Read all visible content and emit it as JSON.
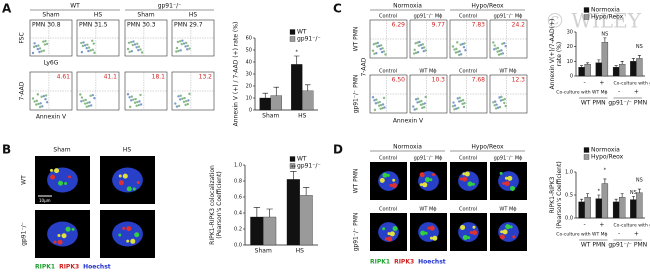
{
  "panel_labels": [
    "A",
    "B",
    "C",
    "D"
  ],
  "watermark": "© WILEY",
  "panel_a": {
    "groups": [
      "WT",
      "gp91⁻/⁻"
    ],
    "top": [
      {
        "condition": "Sham",
        "gate": "PMN 30.8"
      },
      {
        "condition": "HS",
        "gate": "PMN 31.5"
      },
      {
        "condition": "Sham",
        "gate": "PMN 30.3"
      },
      {
        "condition": "HS",
        "gate": "PMN 29.7"
      }
    ],
    "top_axes": [
      "FSC",
      "Ly6G"
    ],
    "bottom": [
      "4.61",
      "41.1",
      "18.1",
      "13.2"
    ],
    "bottom_axes": [
      "7-AAD",
      "Annexin V"
    ]
  },
  "panel_b": {
    "columns": [
      "Sham",
      "HS"
    ],
    "rows": [
      "WT",
      "gp91⁻/⁻"
    ],
    "scale_bar": "10μm",
    "stain": [
      "RIPK1",
      "RIPK3",
      "Hoechst"
    ]
  },
  "panel_c": {
    "columns": [
      "Normoxia",
      "Hypo/Reox"
    ],
    "conditions": [
      [
        "Control",
        "gp91⁻/⁻ Mϕ",
        "Control",
        "gp91⁻/⁻ Mϕ"
      ],
      [
        "Control",
        "WT Mϕ",
        "Control",
        "WT Mϕ"
      ]
    ],
    "rows": [
      "WT PMN",
      "gp91⁻/⁻ PMN"
    ],
    "gates": [
      [
        "6.29",
        "9.77",
        "7.83",
        "24.2"
      ],
      [
        "6.50",
        "10.3",
        "7.68",
        "12.3"
      ]
    ],
    "axes": [
      "7-AAD",
      "Annexin V"
    ]
  },
  "panel_d": {
    "columns": [
      "Normoxia",
      "Hypo/Reox"
    ],
    "conditions": [
      [
        "Control",
        "gp91⁻/⁻ Mϕ",
        "Control",
        "gp91⁻/⁻ Mϕ"
      ],
      [
        "Control",
        "WT Mϕ",
        "Control",
        "WT Mϕ"
      ]
    ],
    "rows": [
      "WT PMN",
      "gp91⁻/⁻ PMN"
    ],
    "stain": [
      "RIPK1",
      "RIPK3",
      "Hoechst"
    ]
  },
  "chart_data": [
    {
      "type": "bar",
      "ylabel": [
        "Annexin V (+) / 7-AAD (+) rate (%)"
      ],
      "categories": [
        "Sham",
        "HS"
      ],
      "series": [
        {
          "name": "WT",
          "color": "#111111",
          "values": [
            10,
            38
          ],
          "errors": [
            4,
            7
          ]
        },
        {
          "name": "gp91⁻/⁻",
          "color": "#9a9a9a",
          "values": [
            12,
            16
          ],
          "errors": [
            7,
            5
          ]
        }
      ],
      "ylim": [
        0,
        60
      ],
      "yticks": [
        0,
        10,
        20,
        30,
        40,
        50,
        60
      ],
      "legend": "upper right",
      "annotations": [
        "*"
      ]
    },
    {
      "type": "bar",
      "ylabel": [
        "RIPK1-RIPK3 colocalization",
        "(Pearson's Coefficient)"
      ],
      "categories": [
        "Sham",
        "HS"
      ],
      "series": [
        {
          "name": "WT",
          "color": "#111111",
          "values": [
            0.35,
            0.82
          ],
          "errors": [
            0.12,
            0.1
          ]
        },
        {
          "name": "gp91⁻/⁻",
          "color": "#9a9a9a",
          "values": [
            0.35,
            0.62
          ],
          "errors": [
            0.1,
            0.1
          ]
        }
      ],
      "ylim": [
        0,
        1
      ],
      "yticks": [
        {
          "value": 0,
          "label": "0.0"
        },
        0.2,
        0.4,
        0.6,
        0.8,
        {
          "value": 1,
          "label": "1.0"
        }
      ],
      "legend": "upper right",
      "annotations": [
        "**"
      ]
    },
    {
      "type": "bar",
      "ylabel": [
        "Annexin V(+)/7-AAD(+)",
        "rate (%)"
      ],
      "categories": [
        null,
        null,
        null,
        null
      ],
      "groups": [
        "WT PMN",
        "gp91⁻/⁻ PMN"
      ],
      "conditions": [
        {
          "label": "Co-culture with gp91⁻/⁻ Mϕ",
          "marks": [
            "-",
            "+",
            null,
            null
          ]
        },
        {
          "label": "Co-culture with WT Mϕ",
          "marks": [
            null,
            null,
            "-",
            "+"
          ]
        }
      ],
      "series": [
        {
          "name": "Normoxia",
          "color": "#111111",
          "values": [
            6,
            9,
            6,
            10
          ],
          "errors": [
            1,
            2,
            1,
            2
          ]
        },
        {
          "name": "Hypo/Reox",
          "color": "#9a9a9a",
          "values": [
            8,
            23,
            8,
            12
          ],
          "errors": [
            1,
            3,
            2,
            2
          ]
        }
      ],
      "ylim": [
        0,
        30
      ],
      "yticks": [
        0,
        10,
        20,
        30
      ],
      "legend": "top",
      "annotations": [
        "NS",
        "NS"
      ]
    },
    {
      "type": "bar",
      "ylabel": [
        "RIPK1-RIPK3",
        "(Pearson's Coefficient)"
      ],
      "categories": [
        null,
        null,
        null,
        null
      ],
      "groups": [
        "WT PMN",
        "gp91⁻/⁻ PMN"
      ],
      "conditions": [
        {
          "label": "Co-culture with gp91⁻/⁻ Mϕ",
          "marks": [
            "-",
            "+",
            null,
            null
          ]
        },
        {
          "label": "Co-culture with WT Mϕ",
          "marks": [
            null,
            null,
            "-",
            "+"
          ]
        }
      ],
      "series": [
        {
          "name": "Normoxia",
          "color": "#111111",
          "values": [
            0.35,
            0.42,
            0.35,
            0.4
          ],
          "errors": [
            0.06,
            0.08,
            0.06,
            0.07
          ]
        },
        {
          "name": "Hypo/Reox",
          "color": "#9a9a9a",
          "values": [
            0.45,
            0.75,
            0.45,
            0.55
          ],
          "errors": [
            0.08,
            0.1,
            0.08,
            0.08
          ]
        }
      ],
      "ylim": [
        0,
        1
      ],
      "yticks": [
        {
          "value": 0,
          "label": "0.0"
        },
        0.5,
        {
          "value": 1,
          "label": "1.0"
        }
      ],
      "legend": "top",
      "annotations": [
        "*",
        "*",
        "NS",
        "NS"
      ]
    }
  ]
}
